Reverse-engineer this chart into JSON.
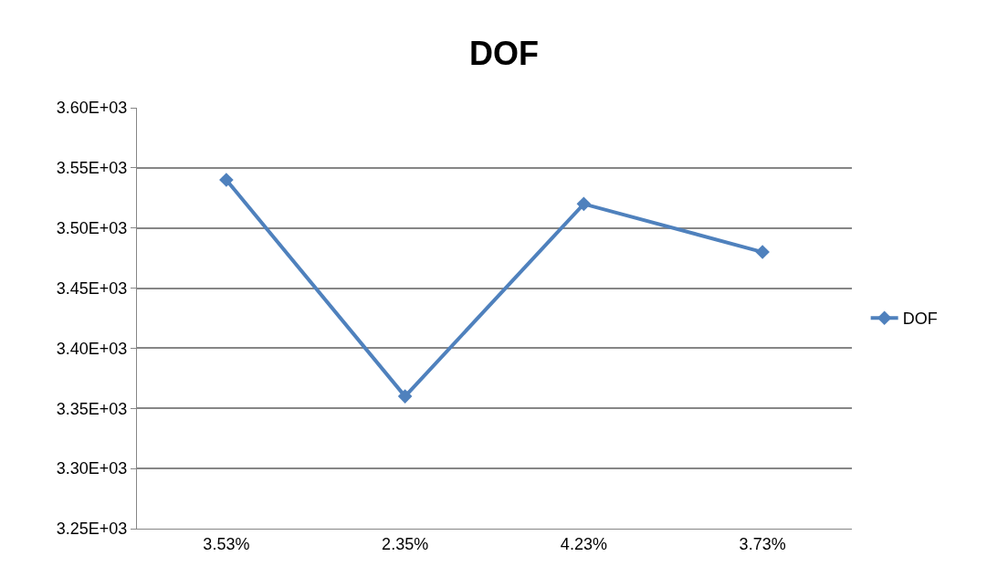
{
  "chart_data": {
    "type": "line",
    "title": "DOF",
    "categories": [
      "3.53%",
      "2.35%",
      "4.23%",
      "3.73%"
    ],
    "series": [
      {
        "name": "DOF",
        "color": "#4f81bd",
        "values": [
          3540,
          3360,
          3520,
          3480
        ]
      }
    ],
    "ylim": [
      3250,
      3600
    ],
    "yticks": [
      {
        "value": 3250,
        "label": "3.25E+03"
      },
      {
        "value": 3300,
        "label": "3.30E+03"
      },
      {
        "value": 3350,
        "label": "3.35E+03"
      },
      {
        "value": 3400,
        "label": "3.40E+03"
      },
      {
        "value": 3450,
        "label": "3.45E+03"
      },
      {
        "value": 3500,
        "label": "3.50E+03"
      },
      {
        "value": 3550,
        "label": "3.55E+03"
      },
      {
        "value": 3600,
        "label": "3.60E+03"
      }
    ],
    "grid": "y",
    "legend": "right",
    "marker": "diamond",
    "line_style": "solid"
  }
}
